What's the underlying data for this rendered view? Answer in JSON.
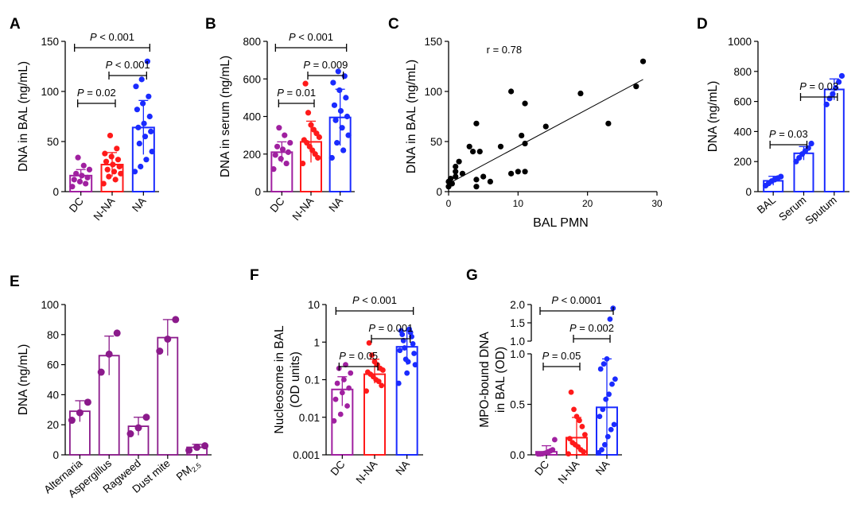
{
  "chart_data": [
    {
      "panel": "A",
      "type": "bar",
      "categories": [
        "DC",
        "N-NA",
        "NA"
      ],
      "ylabel": "DNA in BAL (ng/mL)",
      "ylim": [
        0,
        150
      ],
      "yticks": [
        0,
        50,
        100,
        150
      ],
      "colors": [
        "#a020a0",
        "#ff1a1a",
        "#1a2bff"
      ],
      "values": [
        16,
        27,
        64
      ],
      "errors": [
        6,
        12,
        27
      ],
      "points": [
        [
          5,
          8,
          10,
          12,
          14,
          16,
          18,
          22,
          26,
          34
        ],
        [
          8,
          12,
          15,
          18,
          20,
          22,
          25,
          27,
          30,
          32,
          35,
          38,
          43,
          56
        ],
        [
          20,
          25,
          32,
          40,
          48,
          55,
          60,
          64,
          68,
          75,
          82,
          88,
          95,
          105,
          112,
          130
        ]
      ],
      "brackets": [
        {
          "from": 0,
          "to": 1,
          "label": "P = 0.02",
          "level": 0
        },
        {
          "from": 1,
          "to": 2,
          "label": "P < 0.001",
          "level": 1
        },
        {
          "from": 0,
          "to": 2,
          "label": "P < 0.001",
          "level": 2
        }
      ]
    },
    {
      "panel": "B",
      "type": "bar",
      "categories": [
        "DC",
        "N-NA",
        "NA"
      ],
      "ylabel": "DNA in serum (ng/mL)",
      "ylim": [
        0,
        800
      ],
      "yticks": [
        0,
        200,
        400,
        600,
        800
      ],
      "colors": [
        "#a020a0",
        "#ff1a1a",
        "#1a2bff"
      ],
      "values": [
        210,
        265,
        395
      ],
      "errors": [
        55,
        110,
        150
      ],
      "points": [
        [
          120,
          150,
          175,
          195,
          210,
          225,
          240,
          260,
          300,
          340
        ],
        [
          150,
          180,
          200,
          220,
          240,
          260,
          275,
          290,
          310,
          330,
          355,
          420,
          575
        ],
        [
          180,
          220,
          260,
          300,
          340,
          380,
          400,
          430,
          460,
          500,
          540,
          580,
          615,
          640
        ]
      ],
      "brackets": [
        {
          "from": 0,
          "to": 1,
          "label": "P = 0.01",
          "level": 0
        },
        {
          "from": 1,
          "to": 2,
          "label": "P = 0.009",
          "level": 1
        },
        {
          "from": 0,
          "to": 2,
          "label": "P < 0.001",
          "level": 2
        }
      ]
    },
    {
      "panel": "C",
      "type": "scatter",
      "xlabel": "BAL PMN",
      "ylabel": "DNA in BAL (ng/mL)",
      "xlim": [
        0,
        30
      ],
      "ylim": [
        0,
        150
      ],
      "xticks": [
        0,
        10,
        20,
        30
      ],
      "yticks": [
        0,
        50,
        100,
        150
      ],
      "annotation": "r = 0.78",
      "regression": [
        [
          0,
          8
        ],
        [
          28,
          112
        ]
      ],
      "points": [
        [
          0,
          5
        ],
        [
          0,
          10
        ],
        [
          0.3,
          13
        ],
        [
          0.5,
          8
        ],
        [
          1,
          15
        ],
        [
          1,
          20
        ],
        [
          1,
          25
        ],
        [
          1.5,
          30
        ],
        [
          2,
          18
        ],
        [
          3,
          45
        ],
        [
          3.5,
          40
        ],
        [
          4,
          68
        ],
        [
          4,
          12
        ],
        [
          4,
          5
        ],
        [
          4.5,
          40
        ],
        [
          5,
          15
        ],
        [
          6,
          10
        ],
        [
          7.5,
          45
        ],
        [
          9,
          18
        ],
        [
          9,
          100
        ],
        [
          10,
          20
        ],
        [
          10.5,
          56
        ],
        [
          11,
          48
        ],
        [
          11,
          20
        ],
        [
          11,
          88
        ],
        [
          14,
          65
        ],
        [
          19,
          98
        ],
        [
          23,
          68
        ],
        [
          27,
          105
        ],
        [
          28,
          130
        ]
      ]
    },
    {
      "panel": "D",
      "type": "bar",
      "categories": [
        "BAL",
        "Serum",
        "Sputum"
      ],
      "ylabel": "DNA (ng/mL)",
      "ylim": [
        0,
        1000
      ],
      "yticks": [
        0,
        200,
        400,
        600,
        800,
        1000
      ],
      "colors": [
        "#1a2bff",
        "#1a2bff",
        "#1a2bff"
      ],
      "values": [
        72,
        255,
        680
      ],
      "errors": [
        30,
        45,
        70
      ],
      "points": [
        [
          40,
          55,
          70,
          80,
          90,
          100
        ],
        [
          200,
          225,
          250,
          270,
          290,
          320
        ],
        [
          580,
          620,
          650,
          690,
          730,
          770
        ]
      ],
      "brackets": [
        {
          "from": 0,
          "to": 1,
          "label": "P = 0.03",
          "level": 0
        },
        {
          "from": 1,
          "to": 2,
          "label": "P = 0.03",
          "level": 1
        }
      ]
    },
    {
      "panel": "E",
      "type": "bar",
      "categories": [
        "Alternaria",
        "Aspergillus",
        "Ragweed",
        "Dust mite",
        "PM"
      ],
      "cat_sub": [
        "",
        "",
        "",
        "",
        "2.5"
      ],
      "ylabel": "DNA (ng/mL)",
      "ylim": [
        0,
        100
      ],
      "yticks": [
        0,
        20,
        40,
        60,
        80,
        100
      ],
      "colors": [
        "#8b1a8b",
        "#8b1a8b",
        "#8b1a8b",
        "#8b1a8b",
        "#8b1a8b"
      ],
      "values": [
        29,
        66,
        19,
        78,
        5
      ],
      "errors": [
        7,
        13,
        6,
        12,
        2
      ],
      "points": [
        [
          23,
          28,
          35
        ],
        [
          55,
          67,
          81
        ],
        [
          14,
          18,
          25
        ],
        [
          69,
          77,
          90
        ],
        [
          3,
          5,
          6
        ]
      ]
    },
    {
      "panel": "F",
      "type": "bar",
      "yscale": "log",
      "categories": [
        "DC",
        "N-NA",
        "NA"
      ],
      "ylabel": "Nucleosome in BAL (OD units)",
      "ylim": [
        0.001,
        10
      ],
      "yticks": [
        0.001,
        0.01,
        0.1,
        1,
        10
      ],
      "ytick_labels": [
        "0.001",
        "0.01",
        "0.1",
        "1",
        "10"
      ],
      "colors": [
        "#a020a0",
        "#ff1a1a",
        "#1a2bff"
      ],
      "values": [
        0.055,
        0.14,
        0.75
      ],
      "errors_log": [
        [
          0.02,
          0.12
        ],
        [
          0.08,
          0.35
        ],
        [
          0.25,
          2.0
        ]
      ],
      "points": [
        [
          0.008,
          0.012,
          0.02,
          0.03,
          0.045,
          0.06,
          0.08,
          0.1,
          0.15,
          0.2,
          0.25
        ],
        [
          0.05,
          0.07,
          0.09,
          0.1,
          0.12,
          0.14,
          0.16,
          0.18,
          0.2,
          0.25,
          0.3,
          0.45,
          0.95
        ],
        [
          0.08,
          0.15,
          0.25,
          0.35,
          0.5,
          0.7,
          0.9,
          1.1,
          1.4,
          1.6,
          1.8,
          2.0,
          2.2,
          0.6,
          0.3
        ]
      ],
      "brackets": [
        {
          "from": 0,
          "to": 1,
          "label": "P = 0.05",
          "level": 0
        },
        {
          "from": 1,
          "to": 2,
          "label": "P = 0.001",
          "level": 1
        },
        {
          "from": 0,
          "to": 2,
          "label": "P < 0.001",
          "level": 2
        }
      ]
    },
    {
      "panel": "G",
      "type": "bar",
      "yscale": "broken",
      "categories": [
        "DC",
        "N-NA",
        "NA"
      ],
      "ylabel": "MPO-bound DNA in BAL (OD)",
      "ylim_lower": [
        0,
        1.0
      ],
      "yticks_lower": [
        0.0,
        0.5,
        1.0
      ],
      "ytick_labels_lower": [
        "0.0",
        "0.5",
        "1.0"
      ],
      "ylim_upper": [
        1.0,
        2.0
      ],
      "yticks_upper": [
        1.0,
        1.5,
        2.0
      ],
      "ytick_labels_upper": [
        "1.0",
        "1.5",
        "2.0"
      ],
      "colors": [
        "#a020a0",
        "#ff1a1a",
        "#1a2bff"
      ],
      "values": [
        0.03,
        0.17,
        0.47
      ],
      "errors": [
        0.06,
        0.2,
        0.48
      ],
      "points": [
        [
          0.0,
          0.005,
          0.01,
          0.015,
          0.02,
          0.03,
          0.04,
          0.05,
          0.15
        ],
        [
          0.01,
          0.03,
          0.05,
          0.08,
          0.1,
          0.12,
          0.16,
          0.2,
          0.28,
          0.34,
          0.38,
          0.45,
          0.62
        ],
        [
          0.02,
          0.05,
          0.1,
          0.18,
          0.25,
          0.3,
          0.38,
          0.45,
          0.55,
          0.6,
          0.7,
          0.75,
          0.85,
          0.9,
          0.95,
          1.6,
          1.9
        ]
      ],
      "brackets": [
        {
          "from": 0,
          "to": 1,
          "label": "P = 0.05",
          "level": 0
        },
        {
          "from": 1,
          "to": 2,
          "label": "P = 0.002",
          "level": 1
        },
        {
          "from": 0,
          "to": 2,
          "label": "P < 0.0001",
          "level": 2
        }
      ]
    }
  ]
}
